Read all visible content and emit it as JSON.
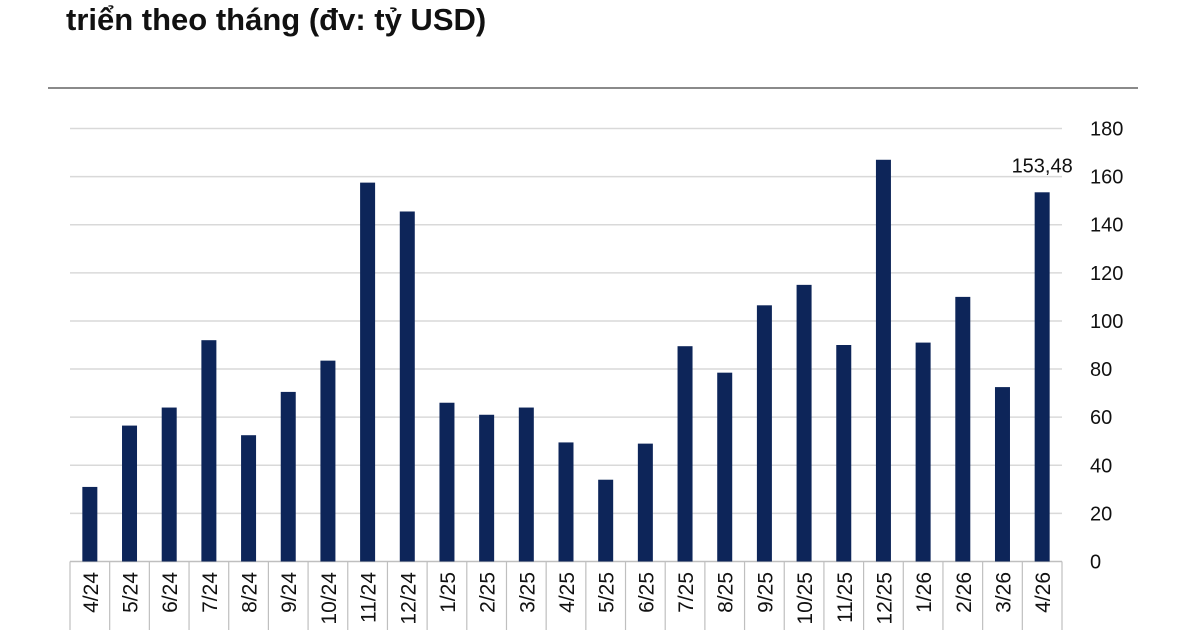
{
  "title": "triển theo tháng (đv: tỷ USD)",
  "colors": {
    "bar": "#0d2559",
    "grid": "#d9d9d9",
    "text": "#111111"
  },
  "chart_data": {
    "type": "bar",
    "title": "triển theo tháng (đv: tỷ USD)",
    "categories": [
      "4/24",
      "5/24",
      "6/24",
      "7/24",
      "8/24",
      "9/24",
      "10/24",
      "11/24",
      "12/24",
      "1/25",
      "2/25",
      "3/25",
      "4/25",
      "5/25",
      "6/25",
      "7/25",
      "8/25",
      "9/25",
      "10/25",
      "11/25",
      "12/25",
      "1/26",
      "2/26",
      "3/26",
      "4/26"
    ],
    "values": [
      31,
      56.5,
      64,
      92,
      52.5,
      70.5,
      83.5,
      157.5,
      145.5,
      66,
      61,
      64,
      49.5,
      34,
      49,
      89.5,
      78.5,
      106.5,
      115,
      90,
      167,
      91,
      110,
      72.5,
      153.48
    ],
    "data_labels": [
      {
        "category": "4/26",
        "text": "153,48"
      }
    ],
    "ylim": [
      0,
      180
    ],
    "yticks": [
      0,
      20,
      40,
      60,
      80,
      100,
      120,
      140,
      160,
      180
    ],
    "y_axis_side": "right",
    "grid": true,
    "legend": "none"
  }
}
